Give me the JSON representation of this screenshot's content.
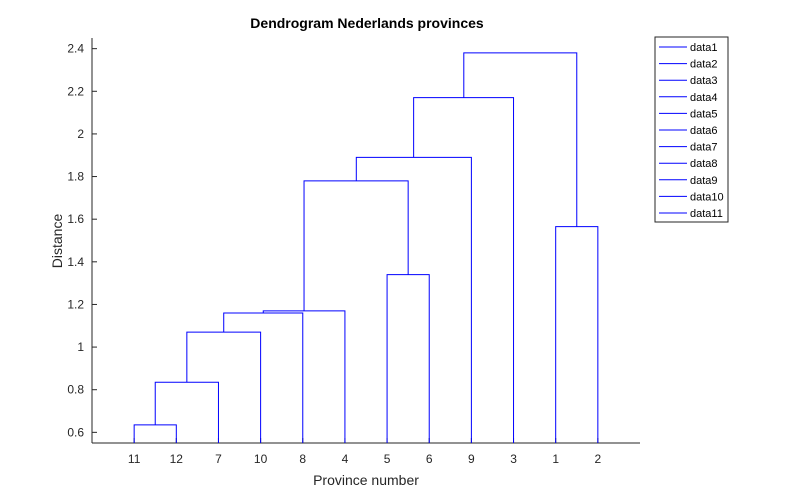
{
  "chart_data": {
    "type": "dendrogram",
    "title": "Dendrogram Nederlands provinces",
    "xlabel": "Province number",
    "ylabel": "Distance",
    "ylim": [
      0.55,
      2.45
    ],
    "yticks": [
      0.6,
      0.8,
      1,
      1.2,
      1.4,
      1.6,
      1.8,
      2,
      2.2,
      2.4
    ],
    "ytick_labels": [
      "0.6",
      "0.8",
      "1",
      "1.2",
      "1.4",
      "1.6",
      "1.8",
      "2",
      "2.2",
      "2.4"
    ],
    "leaf_order": [
      "11",
      "12",
      "7",
      "10",
      "8",
      "4",
      "5",
      "6",
      "9",
      "3",
      "1",
      "2"
    ],
    "line_color": "#0000FF",
    "grid": false,
    "legend_position": "outside-top-right",
    "legend": [
      "data1",
      "data2",
      "data3",
      "data4",
      "data5",
      "data6",
      "data7",
      "data8",
      "data9",
      "data10",
      "data11"
    ],
    "links": [
      {
        "left_x": 1,
        "left_y": 0,
        "right_x": 2,
        "right_y": 0,
        "height": 0.635
      },
      {
        "left_x": 1.5,
        "left_y": 0.635,
        "right_x": 3,
        "right_y": 0,
        "height": 0.835
      },
      {
        "left_x": 2.25,
        "left_y": 0.835,
        "right_x": 4,
        "right_y": 0,
        "height": 1.07
      },
      {
        "left_x": 3.125,
        "left_y": 1.07,
        "right_x": 5,
        "right_y": 0,
        "height": 1.16
      },
      {
        "left_x": 4.0625,
        "left_y": 1.16,
        "right_x": 6,
        "right_y": 0,
        "height": 1.17
      },
      {
        "left_x": 7,
        "left_y": 0,
        "right_x": 8,
        "right_y": 0,
        "height": 1.34
      },
      {
        "left_x": 5.03,
        "left_y": 1.17,
        "right_x": 7.5,
        "right_y": 1.34,
        "height": 1.78
      },
      {
        "left_x": 6.27,
        "left_y": 1.78,
        "right_x": 9,
        "right_y": 0,
        "height": 1.89
      },
      {
        "left_x": 7.63,
        "left_y": 1.89,
        "right_x": 10,
        "right_y": 0,
        "height": 2.17
      },
      {
        "left_x": 11,
        "left_y": 0,
        "right_x": 12,
        "right_y": 0,
        "height": 1.565
      },
      {
        "left_x": 8.82,
        "left_y": 2.17,
        "right_x": 11.5,
        "right_y": 1.565,
        "height": 2.38
      }
    ]
  }
}
